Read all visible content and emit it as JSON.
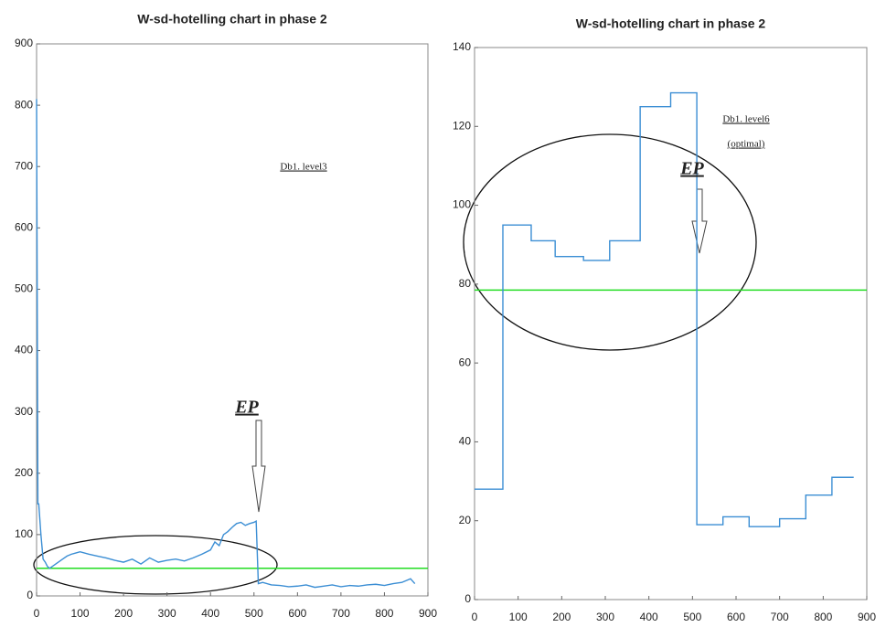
{
  "chart_data": [
    {
      "type": "line",
      "title": "W-sd-hotelling chart in phase 2",
      "x": [
        0,
        3,
        5,
        10,
        15,
        20,
        25,
        30,
        40,
        50,
        60,
        70,
        80,
        90,
        100,
        120,
        140,
        160,
        180,
        200,
        220,
        240,
        260,
        280,
        300,
        320,
        340,
        360,
        380,
        400,
        410,
        420,
        430,
        440,
        450,
        460,
        470,
        480,
        490,
        500,
        505,
        510,
        520,
        540,
        560,
        580,
        600,
        620,
        640,
        660,
        680,
        700,
        720,
        740,
        760,
        780,
        800,
        820,
        840,
        850,
        860,
        870
      ],
      "series": [
        {
          "color": "#3b8ed4",
          "values": [
            810,
            150,
            150,
            100,
            60,
            55,
            48,
            45,
            50,
            55,
            60,
            65,
            68,
            70,
            72,
            68,
            65,
            62,
            58,
            55,
            60,
            52,
            62,
            55,
            58,
            60,
            57,
            62,
            68,
            75,
            88,
            82,
            100,
            105,
            112,
            118,
            120,
            115,
            118,
            120,
            122,
            20,
            22,
            18,
            17,
            15,
            16,
            18,
            14,
            16,
            18,
            15,
            17,
            16,
            18,
            19,
            17,
            20,
            22,
            25,
            28,
            20
          ]
        }
      ],
      "hlines": [
        {
          "value": 45,
          "color": "#22dd22"
        }
      ],
      "xlim": [
        0,
        900
      ],
      "xticks": [
        0,
        100,
        200,
        300,
        400,
        500,
        600,
        700,
        800,
        900
      ],
      "ylim": [
        0,
        900
      ],
      "yticks": [
        0,
        100,
        200,
        300,
        400,
        500,
        600,
        700,
        800,
        900
      ],
      "annotations": [
        "EP",
        "Db1. level3"
      ]
    },
    {
      "type": "line",
      "title": "W-sd-hotelling chart in phase 2",
      "x": [
        0,
        65,
        65,
        130,
        130,
        185,
        185,
        250,
        250,
        310,
        310,
        380,
        380,
        450,
        450,
        510,
        510,
        570,
        570,
        630,
        630,
        700,
        700,
        760,
        760,
        820,
        820,
        870
      ],
      "series": [
        {
          "color": "#3b8ed4",
          "values": [
            28,
            28,
            95,
            95,
            91,
            91,
            87,
            87,
            86,
            86,
            91,
            91,
            125,
            125,
            128.5,
            128.5,
            19,
            19,
            21,
            21,
            18.5,
            18.5,
            20.5,
            20.5,
            26.5,
            26.5,
            31,
            31
          ]
        }
      ],
      "hlines": [
        {
          "value": 78.5,
          "color": "#22dd22"
        }
      ],
      "xlim": [
        0,
        900
      ],
      "xticks": [
        0,
        100,
        200,
        300,
        400,
        500,
        600,
        700,
        800,
        900
      ],
      "ylim": [
        0,
        140
      ],
      "yticks": [
        0,
        20,
        40,
        60,
        80,
        100,
        120,
        140
      ],
      "annotations": [
        "EP",
        "Db1. level6",
        "(optimal)"
      ]
    }
  ]
}
